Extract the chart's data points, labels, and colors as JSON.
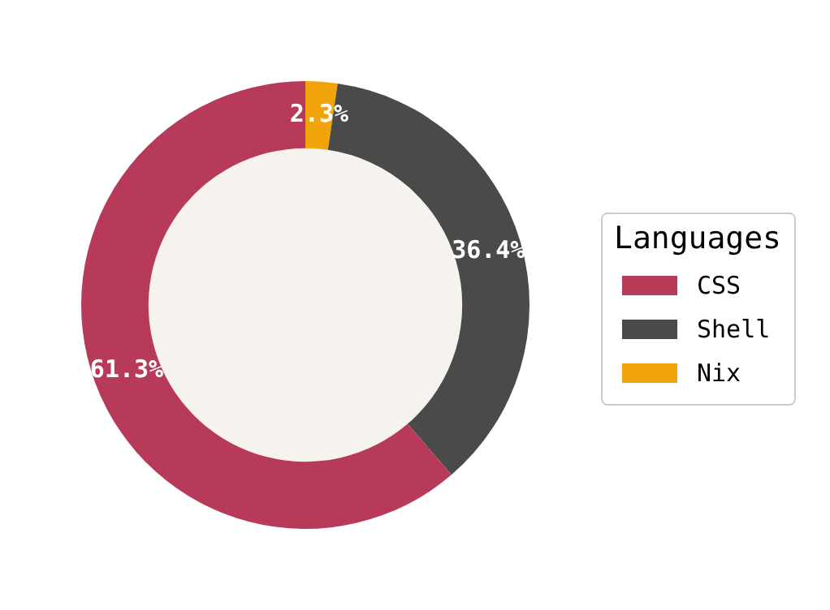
{
  "chart_data": {
    "type": "donut",
    "legend_title": "Languages",
    "legend": "right",
    "categories": [
      "CSS",
      "Shell",
      "Nix"
    ],
    "values": [
      61.3,
      36.4,
      2.3
    ],
    "colors": [
      "#b83a5b",
      "#4a4a4a",
      "#f0a30a"
    ],
    "value_labels": [
      "61.3%",
      "36.4%",
      "2.3%"
    ]
  }
}
